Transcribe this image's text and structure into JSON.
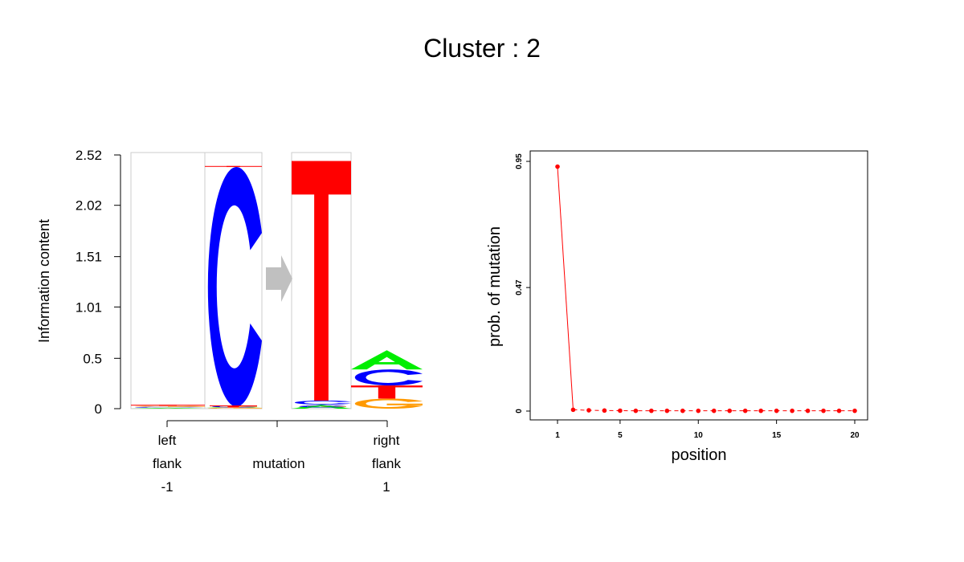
{
  "title": "Cluster : 2",
  "colors": {
    "A": "#00ee00",
    "C": "#0000ff",
    "G": "#ff9900",
    "T": "#ff0000",
    "arrow": "#c0c0c0",
    "line": "#ff0000"
  },
  "chart_data": [
    {
      "type": "sequence-logo",
      "ylabel": "Information content",
      "yticks": [
        "0",
        "0.5",
        "1.01",
        "1.51",
        "2.02",
        "2.52"
      ],
      "ylim": [
        0,
        2.52
      ],
      "groups": [
        {
          "lines": [
            "left",
            "flank",
            "-1"
          ]
        },
        {
          "lines": [
            "mutation"
          ]
        },
        {
          "lines": [
            "right",
            "flank",
            "1"
          ]
        }
      ],
      "columns": [
        {
          "name": "left flank",
          "stack": [
            {
              "base": "A",
              "height": 0.003
            },
            {
              "base": "C",
              "height": 0.003
            },
            {
              "base": "G",
              "height": 0.003
            },
            {
              "base": "T",
              "height": 0.003
            }
          ]
        },
        {
          "name": "mutation from",
          "stack": [
            {
              "base": "G",
              "height": 0.01
            },
            {
              "base": "A",
              "height": 0.01
            },
            {
              "base": "C",
              "height": 2.38
            },
            {
              "base": "T",
              "height": 0.01
            }
          ],
          "lower_stack": [
            {
              "base": "G",
              "height": 0.01
            },
            {
              "base": "C",
              "height": 0.02
            },
            {
              "base": "T",
              "height": 0.01
            }
          ]
        },
        {
          "name": "mutation to",
          "stack": [
            {
              "base": "A",
              "height": 0.04
            },
            {
              "base": "C",
              "height": 0.04
            },
            {
              "base": "T",
              "height": 2.38
            }
          ],
          "lower_stack": [
            {
              "base": "G",
              "height": 0.01
            },
            {
              "base": "A",
              "height": 0.01
            },
            {
              "base": "C",
              "height": 0.01
            }
          ]
        },
        {
          "name": "right flank",
          "stack": [
            {
              "base": "G",
              "height": 0.1
            },
            {
              "base": "T",
              "height": 0.13
            },
            {
              "base": "C",
              "height": 0.16
            },
            {
              "base": "A",
              "height": 0.19
            }
          ]
        }
      ]
    },
    {
      "type": "line",
      "xlabel": "position",
      "ylabel": "prob. of mutation",
      "xticks": [
        1,
        5,
        10,
        15,
        20
      ],
      "yticks": [
        "0",
        "0.47",
        "0.95"
      ],
      "xlim": [
        1,
        20
      ],
      "ylim": [
        0,
        0.95
      ],
      "x": [
        1,
        2,
        3,
        4,
        5,
        6,
        7,
        8,
        9,
        10,
        11,
        12,
        13,
        14,
        15,
        16,
        17,
        18,
        19,
        20
      ],
      "y": [
        0.93,
        0.005,
        0.003,
        0.002,
        0.0015,
        0.001,
        0.001,
        0.001,
        0.001,
        0.001,
        0.001,
        0.001,
        0.001,
        0.001,
        0.001,
        0.001,
        0.001,
        0.001,
        0.001,
        0.001
      ]
    }
  ]
}
